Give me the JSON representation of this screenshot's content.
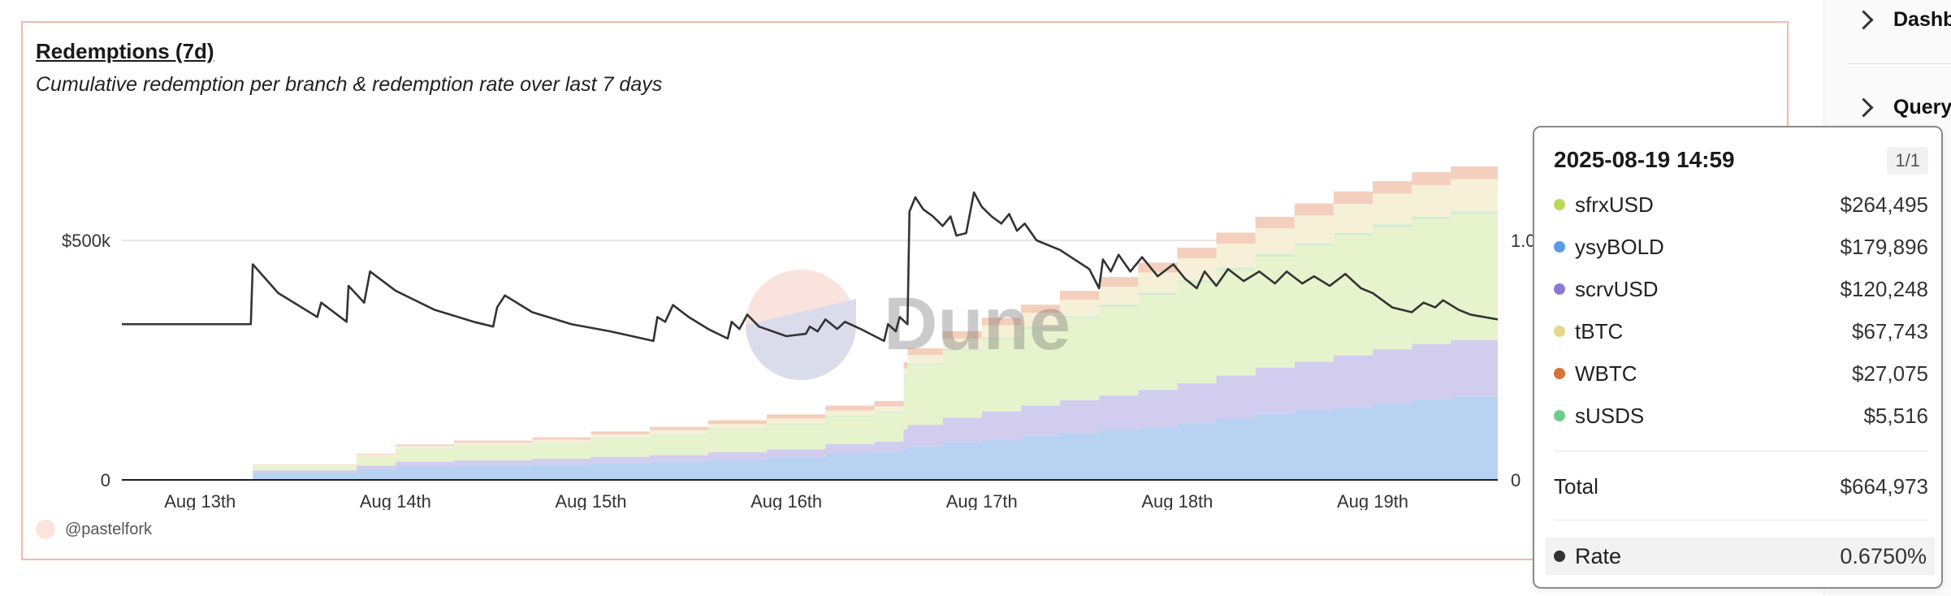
{
  "side_panel": {
    "items": [
      {
        "label": "Dashb",
        "icon": "chevron-right-icon"
      },
      {
        "label": "Query",
        "icon": "chevron-right-icon"
      }
    ]
  },
  "card": {
    "title": "Redemptions (7d)",
    "subtitle": "Cumulative redemption per branch & redemption rate over last 7 days",
    "author": "@pastelfork",
    "watermark": "Dune"
  },
  "chart_data": {
    "type": "area",
    "title": "Redemptions (7d)",
    "subtitle": "Cumulative redemption per branch & redemption rate over last 7 days",
    "x_ticks": [
      "Aug 13th",
      "Aug 14th",
      "Aug 15th",
      "Aug 16th",
      "Aug 17th",
      "Aug 18th",
      "Aug 19th"
    ],
    "x_tick_days": [
      13,
      14,
      15,
      16,
      17,
      18,
      19
    ],
    "x_range_days": [
      12.6,
      19.64
    ],
    "y_left": {
      "ticks": [
        0,
        500000
      ],
      "tick_labels": [
        "0",
        "$500k"
      ],
      "range": [
        0,
        700000
      ]
    },
    "y_right": {
      "ticks": [
        0,
        1.0
      ],
      "tick_labels": [
        "0",
        "1.0"
      ],
      "range": [
        0,
        1.4
      ]
    },
    "grid": true,
    "stacked": true,
    "x": [
      12.6,
      12.9,
      13.27,
      13.6,
      13.8,
      14.0,
      14.3,
      14.7,
      15.0,
      15.3,
      15.6,
      15.9,
      16.2,
      16.45,
      16.6,
      16.62,
      16.8,
      17.0,
      17.2,
      17.4,
      17.6,
      17.8,
      18.0,
      18.2,
      18.4,
      18.6,
      18.8,
      19.0,
      19.2,
      19.4,
      19.64
    ],
    "series": [
      {
        "name": "ysyBOLD",
        "color": "#b8d3f1",
        "values": [
          0,
          0,
          15000,
          15000,
          22000,
          28000,
          30000,
          32000,
          35000,
          38000,
          42000,
          46000,
          55000,
          58000,
          65000,
          70000,
          78000,
          85000,
          92000,
          98000,
          104000,
          110000,
          118000,
          128000,
          138000,
          145000,
          152000,
          160000,
          168000,
          174000,
          179896
        ]
      },
      {
        "name": "scrvUSD",
        "color": "#d2cdee",
        "values": [
          0,
          0,
          5000,
          5000,
          8000,
          10000,
          11000,
          12000,
          13000,
          14000,
          16000,
          18000,
          20000,
          22000,
          40000,
          45000,
          52000,
          58000,
          63000,
          68000,
          72000,
          78000,
          84000,
          90000,
          96000,
          102000,
          108000,
          112000,
          116000,
          118000,
          120248
        ]
      },
      {
        "name": "sfrxUSD",
        "color": "#e7f3cc",
        "values": [
          0,
          0,
          8000,
          8000,
          18000,
          27000,
          30000,
          32000,
          38000,
          42000,
          48000,
          52000,
          57000,
          60000,
          110000,
          125000,
          140000,
          150000,
          160000,
          172000,
          185000,
          198000,
          210000,
          220000,
          232000,
          242000,
          250000,
          256000,
          260000,
          263000,
          264495
        ]
      },
      {
        "name": "sUSDS",
        "color": "#d4ecd4",
        "values": [
          0,
          0,
          300,
          300,
          500,
          700,
          900,
          1000,
          1100,
          1300,
          1500,
          1700,
          2000,
          2200,
          2500,
          2800,
          3100,
          3400,
          3700,
          4000,
          4300,
          4600,
          4800,
          5000,
          5100,
          5200,
          5300,
          5400,
          5450,
          5500,
          5516
        ]
      },
      {
        "name": "tBTC",
        "color": "#f6f0d8",
        "values": [
          0,
          0,
          3000,
          3000,
          4000,
          5000,
          6000,
          7000,
          8000,
          8500,
          9000,
          10000,
          11000,
          11500,
          15000,
          18000,
          22000,
          26000,
          30000,
          34000,
          38000,
          42000,
          46000,
          50000,
          54000,
          58000,
          61000,
          64000,
          66000,
          67000,
          67743
        ]
      },
      {
        "name": "WBTC",
        "color": "#f4cfbd",
        "values": [
          0,
          0,
          1000,
          1000,
          2000,
          3000,
          4000,
          5000,
          6000,
          7000,
          8000,
          9000,
          10000,
          11000,
          13000,
          14000,
          15000,
          16000,
          17000,
          18500,
          20000,
          21000,
          22000,
          23000,
          24000,
          25000,
          25800,
          26400,
          26800,
          27000,
          27075
        ]
      }
    ],
    "rate_series": {
      "name": "Rate",
      "color": "#333333",
      "points": [
        [
          12.6,
          0.65
        ],
        [
          13.26,
          0.65
        ],
        [
          13.27,
          0.9
        ],
        [
          13.4,
          0.78
        ],
        [
          13.6,
          0.68
        ],
        [
          13.62,
          0.74
        ],
        [
          13.75,
          0.66
        ],
        [
          13.76,
          0.81
        ],
        [
          13.84,
          0.74
        ],
        [
          13.87,
          0.87
        ],
        [
          14.0,
          0.79
        ],
        [
          14.2,
          0.71
        ],
        [
          14.4,
          0.66
        ],
        [
          14.5,
          0.64
        ],
        [
          14.52,
          0.72
        ],
        [
          14.56,
          0.77
        ],
        [
          14.7,
          0.7
        ],
        [
          14.9,
          0.65
        ],
        [
          15.1,
          0.62
        ],
        [
          15.32,
          0.58
        ],
        [
          15.34,
          0.68
        ],
        [
          15.38,
          0.66
        ],
        [
          15.42,
          0.73
        ],
        [
          15.5,
          0.68
        ],
        [
          15.6,
          0.63
        ],
        [
          15.7,
          0.59
        ],
        [
          15.72,
          0.66
        ],
        [
          15.76,
          0.63
        ],
        [
          15.8,
          0.69
        ],
        [
          15.86,
          0.64
        ],
        [
          16.0,
          0.6
        ],
        [
          16.1,
          0.61
        ],
        [
          16.12,
          0.64
        ],
        [
          16.16,
          0.62
        ],
        [
          16.2,
          0.67
        ],
        [
          16.26,
          0.63
        ],
        [
          16.3,
          0.66
        ],
        [
          16.38,
          0.63
        ],
        [
          16.5,
          0.58
        ],
        [
          16.52,
          0.65
        ],
        [
          16.56,
          0.62
        ],
        [
          16.58,
          0.68
        ],
        [
          16.62,
          0.65
        ],
        [
          16.63,
          1.12
        ],
        [
          16.66,
          1.18
        ],
        [
          16.7,
          1.13
        ],
        [
          16.75,
          1.1
        ],
        [
          16.8,
          1.06
        ],
        [
          16.84,
          1.1
        ],
        [
          16.87,
          1.02
        ],
        [
          16.92,
          1.03
        ],
        [
          16.96,
          1.2
        ],
        [
          17.0,
          1.14
        ],
        [
          17.05,
          1.1
        ],
        [
          17.1,
          1.07
        ],
        [
          17.14,
          1.11
        ],
        [
          17.18,
          1.04
        ],
        [
          17.22,
          1.07
        ],
        [
          17.28,
          1.0
        ],
        [
          17.4,
          0.96
        ],
        [
          17.55,
          0.88
        ],
        [
          17.6,
          0.8
        ],
        [
          17.62,
          0.92
        ],
        [
          17.66,
          0.87
        ],
        [
          17.7,
          0.94
        ],
        [
          17.76,
          0.87
        ],
        [
          17.82,
          0.93
        ],
        [
          17.9,
          0.85
        ],
        [
          17.98,
          0.9
        ],
        [
          18.04,
          0.84
        ],
        [
          18.1,
          0.8
        ],
        [
          18.14,
          0.87
        ],
        [
          18.2,
          0.81
        ],
        [
          18.26,
          0.88
        ],
        [
          18.34,
          0.83
        ],
        [
          18.42,
          0.87
        ],
        [
          18.5,
          0.82
        ],
        [
          18.56,
          0.87
        ],
        [
          18.64,
          0.82
        ],
        [
          18.7,
          0.85
        ],
        [
          18.78,
          0.81
        ],
        [
          18.86,
          0.86
        ],
        [
          18.94,
          0.8
        ],
        [
          19.0,
          0.78
        ],
        [
          19.1,
          0.72
        ],
        [
          19.2,
          0.7
        ],
        [
          19.26,
          0.74
        ],
        [
          19.32,
          0.72
        ],
        [
          19.36,
          0.75
        ],
        [
          19.44,
          0.71
        ],
        [
          19.5,
          0.69
        ],
        [
          19.64,
          0.67
        ]
      ]
    },
    "tooltip": {
      "timestamp": "2025-08-19 14:59",
      "page": "1/1",
      "rows": [
        {
          "name": "sfrxUSD",
          "value": "$264,495",
          "color": "#b6d95a"
        },
        {
          "name": "ysyBOLD",
          "value": "$179,896",
          "color": "#5b9be6"
        },
        {
          "name": "scrvUSD",
          "value": "$120,248",
          "color": "#8c79d6"
        },
        {
          "name": "tBTC",
          "value": "$67,743",
          "color": "#e4d78e"
        },
        {
          "name": "WBTC",
          "value": "$27,075",
          "color": "#d9713a"
        },
        {
          "name": "sUSDS",
          "value": "$5,516",
          "color": "#6dcc8a"
        }
      ],
      "total_label": "Total",
      "total_value": "$664,973",
      "rate_label": "Rate",
      "rate_value": "0.6750%",
      "rate_color": "#333333"
    }
  }
}
